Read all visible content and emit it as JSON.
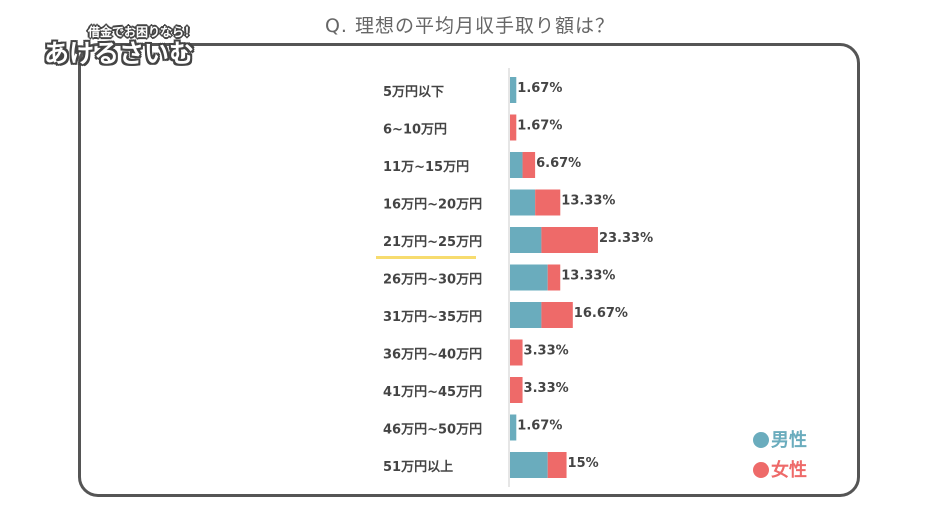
{
  "title": "Q. 理想の平均月収手取り額は？",
  "logo": {
    "tagline": "借金でお困りなら！",
    "name": "あけるさいむ"
  },
  "colors": {
    "men": "#6aacbd",
    "women": "#ee6a69",
    "highlight": "#f7dc6f",
    "frame": "#555555"
  },
  "chart_data": {
    "type": "bar",
    "orientation": "horizontal",
    "stacked": true,
    "title": "Q. 理想の平均月収手取り額は？",
    "categories": [
      "5万円以下",
      "6~10万円",
      "11万~15万円",
      "16万円~20万円",
      "21万円~25万円",
      "26万円~30万円",
      "31万円~35万円",
      "36万円~40万円",
      "41万円~45万円",
      "46万円~50万円",
      "51万円以上"
    ],
    "series": [
      {
        "name": "男性",
        "values": [
          1.67,
          0,
          3.33,
          6.67,
          8.33,
          10.0,
          8.33,
          0,
          0,
          1.67,
          10.0
        ]
      },
      {
        "name": "女性",
        "values": [
          0,
          1.67,
          3.33,
          6.67,
          15.0,
          3.33,
          8.33,
          3.33,
          3.33,
          0,
          5.0
        ]
      }
    ],
    "totals": [
      "1.67%",
      "1.67%",
      "6.67%",
      "13.33%",
      "23.33%",
      "13.33%",
      "16.67%",
      "3.33%",
      "3.33%",
      "1.67%",
      "15%"
    ],
    "highlighted_category": "21万円~25万円",
    "legend": [
      "男性",
      "女性"
    ],
    "legend_position": "bottom-right",
    "grid": false
  }
}
